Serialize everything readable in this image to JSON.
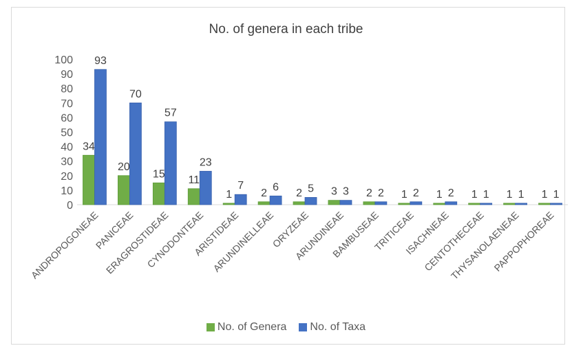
{
  "chart_data": {
    "type": "bar",
    "title": "No. of genera in each tribe",
    "categories": [
      "ANDROPOGONEAE",
      "PANICEAE",
      "ERAGROSTIDEAE",
      "CYNODONTEAE",
      "ARISTIDEAE",
      "ARUNDINELLEAE",
      "ORYZEAE",
      "ARUNDINEAE",
      "BAMBUSEAE",
      "TRITICEAE",
      "ISACHNEAE",
      "CENTOTHECEAE",
      "THYSANOLAENEAE",
      "PAPPOPHOREAE"
    ],
    "series": [
      {
        "name": "No. of Genera",
        "color": "#70ad47",
        "values": [
          34,
          20,
          15,
          11,
          1,
          2,
          2,
          3,
          2,
          1,
          1,
          1,
          1,
          1
        ]
      },
      {
        "name": "No. of Taxa",
        "color": "#4472c4",
        "values": [
          93,
          70,
          57,
          23,
          7,
          6,
          5,
          3,
          2,
          2,
          2,
          1,
          1,
          1
        ]
      }
    ],
    "ylim": [
      0,
      100
    ],
    "yticks": [
      0,
      10,
      20,
      30,
      40,
      50,
      60,
      70,
      80,
      90,
      100
    ],
    "legend": "bottom",
    "grid": false,
    "xlabel": "",
    "ylabel": ""
  }
}
